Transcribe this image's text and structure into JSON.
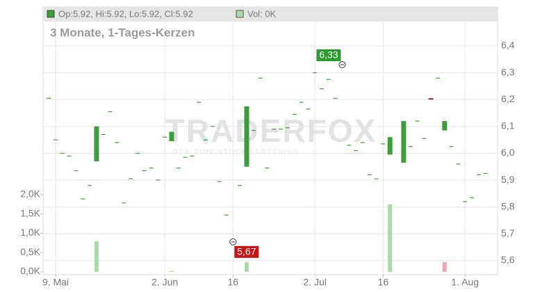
{
  "chart_data": {
    "type": "candlestick",
    "title": "3 Monate, 1-Tages-Kerzen",
    "legend": {
      "ohlc_label": "Op:5.92, Hi:5.92, Lo:5.92, Cl:5.92",
      "volume_label": "Vol: 0K"
    },
    "watermark": {
      "brand": "TRADERFOX",
      "tagline": "REALTIME STOCK SCREENING"
    },
    "up_color": "#3a9f3a",
    "down_color": "#b31b1b",
    "volume_up_color": "#a9dba9",
    "volume_down_color": "#f2a5b0",
    "grid": true,
    "x": [
      -1,
      0,
      1,
      2,
      3,
      4,
      5,
      6,
      7,
      8,
      9,
      10,
      11,
      12,
      13,
      14,
      15,
      16,
      17,
      18,
      19,
      20,
      21,
      22,
      23,
      24,
      25,
      26,
      27,
      28,
      29,
      30,
      31,
      32,
      33,
      34,
      35,
      36,
      37,
      38,
      39,
      40,
      41,
      42,
      43,
      44,
      45,
      46,
      47,
      48,
      49,
      51,
      52,
      53,
      54,
      55,
      56,
      57,
      58,
      59,
      60,
      61,
      62,
      63
    ],
    "ohlc": [
      [
        6.205,
        6.205,
        6.205,
        6.205
      ],
      [
        6.05,
        6.05,
        6.05,
        6.05
      ],
      [
        6.0,
        6.0,
        6.0,
        6.0
      ],
      [
        5.99,
        5.99,
        5.99,
        5.99
      ],
      [
        5.935,
        5.935,
        5.935,
        5.935
      ],
      [
        5.83,
        5.83,
        5.83,
        5.83
      ],
      [
        5.88,
        5.88,
        5.88,
        5.88
      ],
      [
        5.97,
        6.1,
        5.97,
        6.1
      ],
      [
        6.07,
        6.07,
        6.07,
        6.07
      ],
      [
        6.155,
        6.155,
        6.155,
        6.155
      ],
      [
        6.04,
        6.04,
        6.04,
        6.04
      ],
      [
        5.815,
        5.815,
        5.815,
        5.815
      ],
      [
        5.905,
        5.905,
        5.905,
        5.905
      ],
      [
        6.0,
        6.0,
        6.0,
        6.0
      ],
      [
        5.935,
        5.935,
        5.935,
        5.935
      ],
      [
        5.945,
        5.945,
        5.945,
        5.945
      ],
      [
        5.9,
        5.9,
        5.9,
        5.9
      ],
      [
        6.06,
        6.06,
        6.06,
        6.06
      ],
      [
        6.045,
        6.08,
        6.045,
        6.08
      ],
      [
        5.945,
        5.945,
        5.945,
        5.945
      ],
      [
        5.985,
        5.985,
        5.985,
        5.985
      ],
      [
        5.99,
        5.99,
        5.99,
        5.99
      ],
      [
        6.19,
        6.19,
        6.19,
        6.19
      ],
      [
        6.05,
        6.05,
        6.05,
        6.05
      ],
      [
        6.1,
        6.1,
        6.1,
        6.1
      ],
      [
        5.895,
        5.895,
        5.895,
        5.895
      ],
      [
        5.77,
        5.77,
        5.77,
        5.77
      ],
      [
        5.67,
        5.67,
        5.67,
        5.67
      ],
      [
        5.88,
        5.88,
        5.88,
        5.88
      ],
      [
        5.95,
        6.175,
        5.95,
        6.175
      ],
      [
        6.085,
        6.085,
        6.085,
        6.085
      ],
      [
        6.28,
        6.28,
        6.28,
        6.28
      ],
      [
        5.945,
        5.945,
        5.945,
        5.945
      ],
      [
        6.09,
        6.09,
        6.09,
        6.09
      ],
      [
        6.09,
        6.09,
        6.09,
        6.09
      ],
      [
        6.095,
        6.095,
        6.095,
        6.095
      ],
      [
        6.145,
        6.145,
        6.145,
        6.145
      ],
      [
        6.19,
        6.19,
        6.19,
        6.19
      ],
      [
        6.165,
        6.165,
        6.165,
        6.165
      ],
      [
        6.3,
        6.3,
        6.3,
        6.3
      ],
      [
        6.24,
        6.24,
        6.24,
        6.24
      ],
      [
        6.275,
        6.275,
        6.275,
        6.275
      ],
      [
        6.205,
        6.205,
        6.205,
        6.205
      ],
      [
        6.33,
        6.33,
        6.33,
        6.33
      ],
      [
        6.03,
        6.03,
        6.03,
        6.03
      ],
      [
        6.01,
        6.01,
        6.01,
        6.01
      ],
      [
        6.04,
        6.04,
        6.04,
        6.04
      ],
      [
        5.92,
        5.92,
        5.92,
        5.92
      ],
      [
        5.905,
        5.905,
        5.905,
        5.905
      ],
      [
        6.035,
        6.035,
        6.035,
        6.035
      ],
      [
        5.995,
        6.06,
        5.995,
        6.06
      ],
      [
        5.965,
        6.12,
        5.965,
        6.12
      ],
      [
        6.025,
        6.025,
        6.025,
        6.025
      ],
      [
        6.12,
        6.12,
        6.12,
        6.12
      ],
      [
        6.055,
        6.055,
        6.055,
        6.055
      ],
      [
        6.205,
        6.205,
        6.2,
        6.2
      ],
      [
        6.28,
        6.28,
        6.28,
        6.28
      ],
      [
        6.085,
        6.12,
        6.085,
        6.12
      ],
      [
        6.025,
        6.025,
        6.025,
        6.025
      ],
      [
        5.96,
        5.96,
        5.96,
        5.96
      ],
      [
        5.82,
        5.82,
        5.82,
        5.82
      ],
      [
        5.835,
        5.835,
        5.835,
        5.835
      ],
      [
        5.92,
        5.92,
        5.92,
        5.92
      ],
      [
        5.925,
        5.925,
        5.925,
        5.925
      ]
    ],
    "volume": [
      0,
      0,
      0,
      0,
      0,
      0,
      0,
      790,
      0,
      0,
      0,
      0,
      0,
      0,
      0,
      0,
      0,
      0,
      20,
      0,
      0,
      0,
      0,
      0,
      0,
      0,
      0,
      0,
      0,
      250,
      0,
      0,
      0,
      0,
      0,
      0,
      0,
      0,
      0,
      0,
      0,
      0,
      0,
      0,
      0,
      0,
      0,
      0,
      0,
      0,
      1750,
      0,
      0,
      0,
      0,
      0,
      0,
      250,
      0,
      0,
      0,
      0,
      0,
      0
    ],
    "xlim": [
      -1.83,
      64.77
    ],
    "xticks": [
      {
        "value": 0,
        "label": "9. Mai"
      },
      {
        "value": 16,
        "label": "2. Jun"
      },
      {
        "value": 26,
        "label": "16"
      },
      {
        "value": 38,
        "label": "2. Jul"
      },
      {
        "value": 48,
        "label": "16"
      },
      {
        "value": 60,
        "label": "1. Aug"
      }
    ],
    "ylim": [
      5.548,
      6.545
    ],
    "yticks": [
      {
        "value": 5.6,
        "label": "5,6"
      },
      {
        "value": 5.7,
        "label": "5,7"
      },
      {
        "value": 5.8,
        "label": "5,8"
      },
      {
        "value": 5.9,
        "label": "5,9"
      },
      {
        "value": 6.0,
        "label": "6,0"
      },
      {
        "value": 6.1,
        "label": "6,1"
      },
      {
        "value": 6.2,
        "label": "6,2"
      },
      {
        "value": 6.3,
        "label": "6,3"
      },
      {
        "value": 6.4,
        "label": "6,4"
      }
    ],
    "y2lim": [
      0,
      6865
    ],
    "y2ticks": [
      {
        "value": 0,
        "label": "0,0K"
      },
      {
        "value": 500,
        "label": "0,5K"
      },
      {
        "value": 1000,
        "label": "1,0K"
      },
      {
        "value": 1500,
        "label": "1,5K"
      },
      {
        "value": 2000,
        "label": "2,0K"
      }
    ],
    "high_marker": {
      "x": 42,
      "value": 6.33,
      "label": "6,33"
    },
    "low_marker": {
      "x": 26,
      "value": 5.67,
      "label": "5,67"
    }
  }
}
